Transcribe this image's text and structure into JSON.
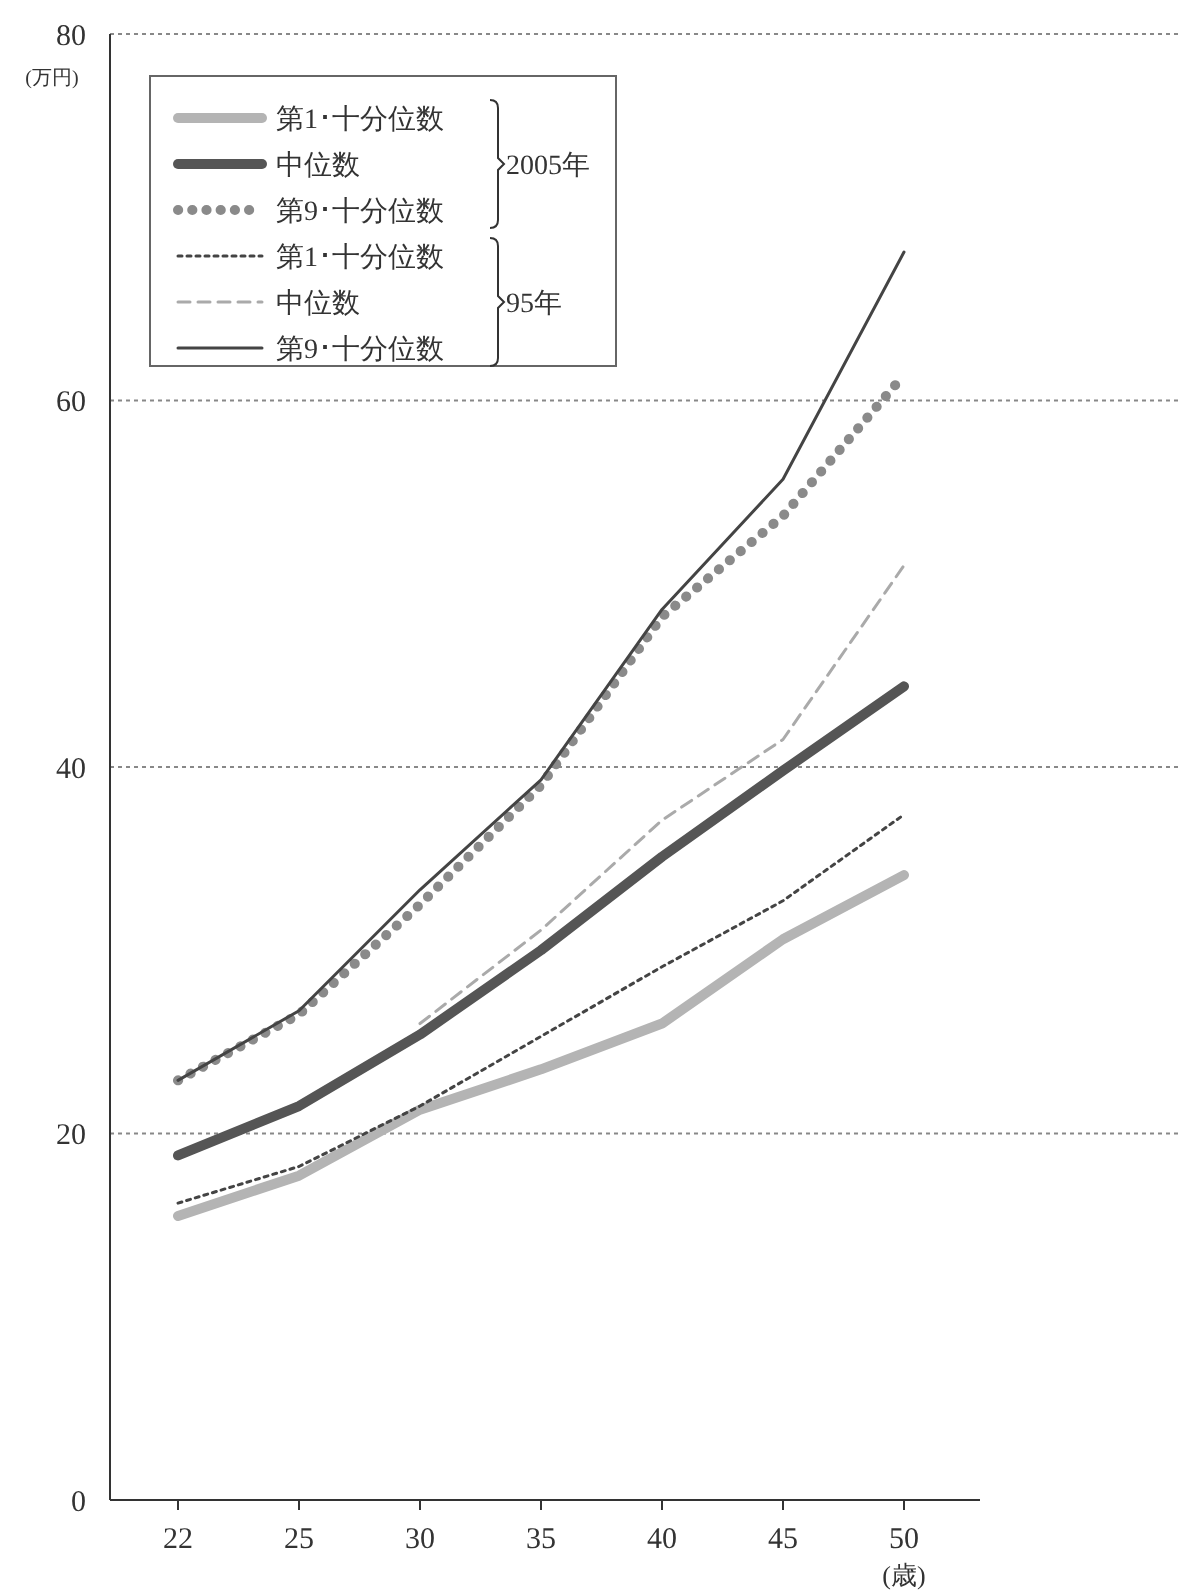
{
  "chart_data": {
    "type": "line",
    "xlabel": "(歳)",
    "ylabel": "(万円)",
    "categories": [
      "22",
      "25",
      "30",
      "35",
      "40",
      "45",
      "50"
    ],
    "ylim": [
      0,
      80
    ],
    "yticks": [
      0,
      20,
      40,
      60,
      80
    ],
    "grid": "y",
    "legend": "top left",
    "marker": "none",
    "annotations": [
      "2005年",
      "95年"
    ],
    "series": [
      {
        "name": "第1･十分位数",
        "color": "#b4b4b4",
        "line_style": "solid",
        "values": [
          15.5,
          17.7,
          21.3,
          23.5,
          26,
          30.6,
          34.1
        ]
      },
      {
        "name": "中位数",
        "color": "#555555",
        "line_style": "solid",
        "values": [
          18.8,
          21.5,
          25.4,
          30,
          35.1,
          39.8,
          44.4
        ]
      },
      {
        "name": "第9･十分位数",
        "color": "#8a8a8a",
        "line_style": "dotted",
        "values": [
          22.9,
          26.5,
          32.5,
          39,
          48.2,
          53.7,
          61.4
        ]
      },
      {
        "name": "第1･十分位数",
        "color": "#444444",
        "line_style": "dotted",
        "values": [
          16.2,
          18.2,
          21.5,
          25.3,
          29.1,
          32.7,
          37.4
        ]
      },
      {
        "name": "中位数",
        "color": "#aaaaaa",
        "line_style": "dashed",
        "values": [
          null,
          null,
          26,
          31.1,
          37.1,
          41.5,
          51
        ]
      },
      {
        "name": "第9･十分位数",
        "color": "#444444",
        "line_style": "solid",
        "values": [
          22.9,
          26.7,
          33.3,
          39.3,
          48.6,
          55.7,
          68.1
        ]
      }
    ]
  }
}
